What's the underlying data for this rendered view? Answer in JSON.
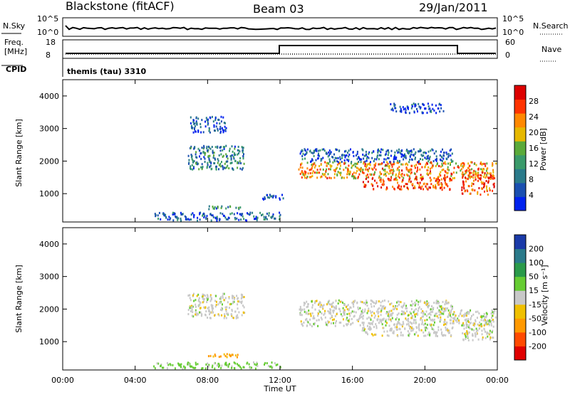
{
  "header": {
    "station": "Blackstone (fitACF)",
    "beam": "Beam 03",
    "date": "29/Jan/2011"
  },
  "status_panels": {
    "nsky_label": "N.Sky",
    "nsearch_label": "N.Search",
    "noise_ticks": [
      "10^5",
      "10^0"
    ],
    "freq_label_1": "Freq.",
    "freq_label_2": "[MHz]",
    "freq_ticks": [
      "18",
      "8"
    ],
    "nave_label": "Nave",
    "nave_ticks": [
      "60",
      "0"
    ],
    "cpid_label": "CPID",
    "cpid_value": "themis (tau) 3310"
  },
  "colors": {
    "power_scale": [
      "#0022ee",
      "#1a4fb0",
      "#2a7a8a",
      "#3a9a6a",
      "#5aaa3a",
      "#e6b800",
      "#ff8800",
      "#ff3300",
      "#dd0000"
    ],
    "velocity_scale": [
      "#e00000",
      "#ff4a00",
      "#ff9900",
      "#f0c000",
      "#c8c8c8",
      "#66cc33",
      "#2a9a4a",
      "#2a7a8a",
      "#1a3aa8"
    ]
  },
  "chart_data": [
    {
      "type": "heatmap",
      "name": "power",
      "xlabel": "",
      "ylabel": "Slant Range [km]",
      "y_ticks": [
        "1000",
        "2000",
        "3000",
        "4000"
      ],
      "x_ticks": [
        "00:00",
        "04:00",
        "08:00",
        "12:00",
        "16:00",
        "20:00",
        "00:00"
      ],
      "colorbar_label": "Power [dB]",
      "colorbar_ticks": [
        "4",
        "8",
        "12",
        "16",
        "20",
        "24",
        "28"
      ],
      "regions": [
        {
          "t0": 6.9,
          "t1": 10.0,
          "r0": 1750,
          "r1": 2500,
          "value": 10
        },
        {
          "t0": 7.0,
          "t1": 9.0,
          "r0": 2900,
          "r1": 3400,
          "value": 4
        },
        {
          "t0": 13.0,
          "t1": 23.9,
          "r0": 1500,
          "r1": 2000,
          "value": 22
        },
        {
          "t0": 13.0,
          "t1": 21.5,
          "r0": 2000,
          "r1": 2400,
          "value": 6
        },
        {
          "t0": 16.5,
          "t1": 21.5,
          "r0": 1150,
          "r1": 1500,
          "value": 27
        },
        {
          "t0": 22.0,
          "t1": 23.8,
          "r0": 1000,
          "r1": 1700,
          "value": 26
        },
        {
          "t0": 18.0,
          "t1": 21.0,
          "r0": 3500,
          "r1": 3800,
          "value": 4
        },
        {
          "t0": 5.0,
          "t1": 12.0,
          "r0": 200,
          "r1": 450,
          "value": 6
        },
        {
          "t0": 11.0,
          "t1": 12.2,
          "r0": 850,
          "r1": 1000,
          "value": 6
        },
        {
          "t0": 8.0,
          "t1": 9.8,
          "r0": 550,
          "r1": 650,
          "value": 10
        }
      ]
    },
    {
      "type": "heatmap",
      "name": "velocity",
      "xlabel": "Time UT",
      "ylabel": "Slant Range [km]",
      "y_ticks": [
        "1000",
        "2000",
        "3000",
        "4000"
      ],
      "x_ticks": [
        "00:00",
        "04:00",
        "08:00",
        "12:00",
        "16:00",
        "20:00",
        "00:00"
      ],
      "colorbar_label": "Velocity [m s⁻¹]",
      "colorbar_ticks": [
        "200",
        "100",
        "50",
        "15",
        "-15",
        "-50",
        "-100",
        "-200"
      ],
      "regions": [
        {
          "t0": 6.9,
          "t1": 10.0,
          "r0": 1750,
          "r1": 2500,
          "value": 0
        },
        {
          "t0": 13.0,
          "t1": 23.9,
          "r0": 1500,
          "r1": 2000,
          "value": 0
        },
        {
          "t0": 13.0,
          "t1": 21.5,
          "r0": 2000,
          "r1": 2300,
          "value": 0
        },
        {
          "t0": 16.5,
          "t1": 21.5,
          "r0": 1200,
          "r1": 1500,
          "value": 0
        },
        {
          "t0": 22.0,
          "t1": 23.8,
          "r0": 1050,
          "r1": 1700,
          "value": 0
        },
        {
          "t0": 8.0,
          "t1": 9.8,
          "r0": 550,
          "r1": 650,
          "value": -60
        },
        {
          "t0": 5.0,
          "t1": 12.0,
          "r0": 200,
          "r1": 400,
          "value": 25
        }
      ]
    }
  ]
}
